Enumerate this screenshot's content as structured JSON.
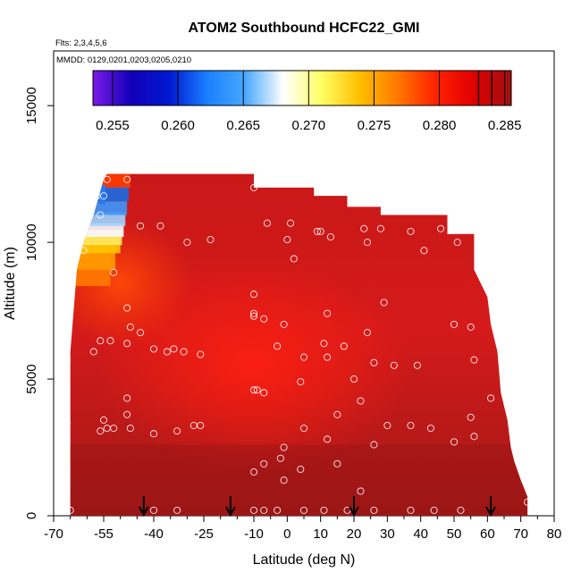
{
  "chart_data": {
    "type": "heatmap",
    "title": "ATOM2 Southbound HCFC22_GMI",
    "subtitle_flights": "Flts: 2,3,4,5,6",
    "subtitle_dates": "MMDD: 0129,0201,0203,0205,0210",
    "xlabel": "Latitude (deg N)",
    "ylabel": "Altitude (m)",
    "xlim": [
      -70,
      80
    ],
    "ylim": [
      0,
      17000
    ],
    "x_ticks": [
      -70,
      -55,
      -40,
      -25,
      -10,
      0,
      10,
      20,
      30,
      40,
      50,
      60,
      70,
      80
    ],
    "x_tick_labels": [
      "-70",
      "-55",
      "-40",
      "-25",
      "-10",
      "0",
      "10",
      "20",
      "30",
      "40",
      "50",
      "60",
      "70",
      "80"
    ],
    "x_minor_ticks": [
      -65,
      -60,
      -50,
      -45,
      -35,
      -30,
      -20,
      -15,
      -5,
      5,
      15,
      25,
      35,
      45,
      55,
      65,
      75
    ],
    "y_ticks": [
      0,
      5000,
      10000,
      15000
    ],
    "y_tick_labels": [
      "0",
      "5000",
      "10000",
      "15000"
    ],
    "colorbar": {
      "min": 0.2535,
      "max": 0.2855,
      "tick_values": [
        0.255,
        0.26,
        0.265,
        0.27,
        0.275,
        0.28,
        0.285
      ],
      "tick_labels": [
        "0.255",
        "0.260",
        "0.265",
        "0.270",
        "0.275",
        "0.280",
        "0.285"
      ],
      "colors": [
        "#7a1ae6",
        "#1200b8",
        "#0018d0",
        "#1a80ff",
        "#4aa8ff",
        "#ffffff",
        "#ffff66",
        "#ffc000",
        "#ff7a00",
        "#ff2200",
        "#e00000",
        "#a01010"
      ]
    },
    "curtain_top_altitude": [
      [
        -65,
        0
      ],
      [
        -65,
        6000
      ],
      [
        -63,
        9000
      ],
      [
        -61,
        10000
      ],
      [
        -58,
        11000
      ],
      [
        -55,
        12300
      ],
      [
        -54,
        12500
      ],
      [
        -35,
        12500
      ],
      [
        -20,
        12500
      ],
      [
        -10,
        12500
      ],
      [
        -10,
        12000
      ],
      [
        8,
        12000
      ],
      [
        8,
        11700
      ],
      [
        18,
        11700
      ],
      [
        18,
        11300
      ],
      [
        28,
        11300
      ],
      [
        28,
        11000
      ],
      [
        48,
        11000
      ],
      [
        48,
        10300
      ],
      [
        56,
        10300
      ],
      [
        56,
        9000
      ],
      [
        60,
        8000
      ],
      [
        61,
        7000
      ],
      [
        63,
        6000
      ],
      [
        64,
        4500
      ],
      [
        66,
        3500
      ],
      [
        67,
        2500
      ],
      [
        68,
        2000
      ],
      [
        70,
        1300
      ],
      [
        72,
        700
      ],
      [
        72,
        0
      ]
    ],
    "obs_values": [
      0.284,
      0.284,
      0.284,
      0.283,
      0.283
    ],
    "arrow_latitudes": [
      -43,
      -17,
      20,
      61
    ],
    "points": [
      {
        "lat": -57,
        "alt": 11700
      },
      {
        "lat": -56,
        "alt": 11000
      },
      {
        "lat": -55,
        "alt": 11700
      },
      {
        "lat": -54,
        "alt": 12300
      },
      {
        "lat": -48,
        "alt": 12300
      },
      {
        "lat": -44,
        "alt": 10600
      },
      {
        "lat": -38,
        "alt": 10600
      },
      {
        "lat": -30,
        "alt": 10000
      },
      {
        "lat": -23,
        "alt": 10100
      },
      {
        "lat": -61,
        "alt": 9700
      },
      {
        "lat": -52,
        "alt": 8900
      },
      {
        "lat": -48,
        "alt": 7600
      },
      {
        "lat": -47,
        "alt": 6900
      },
      {
        "lat": -48,
        "alt": 6300
      },
      {
        "lat": -44,
        "alt": 6700
      },
      {
        "lat": -40,
        "alt": 6100
      },
      {
        "lat": -36,
        "alt": 6000
      },
      {
        "lat": -34,
        "alt": 6100
      },
      {
        "lat": -31,
        "alt": 6000
      },
      {
        "lat": -26,
        "alt": 5900
      },
      {
        "lat": -53,
        "alt": 6400
      },
      {
        "lat": -56,
        "alt": 6400
      },
      {
        "lat": -58,
        "alt": 6000
      },
      {
        "lat": -66,
        "alt": 5700
      },
      {
        "lat": -48,
        "alt": 4300
      },
      {
        "lat": -48,
        "alt": 3700
      },
      {
        "lat": -52,
        "alt": 3200
      },
      {
        "lat": -55,
        "alt": 3500
      },
      {
        "lat": -56,
        "alt": 3100
      },
      {
        "lat": -54,
        "alt": 3200
      },
      {
        "lat": -47,
        "alt": 3200
      },
      {
        "lat": -40,
        "alt": 3000
      },
      {
        "lat": -33,
        "alt": 3100
      },
      {
        "lat": -28,
        "alt": 3300
      },
      {
        "lat": -26,
        "alt": 3300
      },
      {
        "lat": -66,
        "alt": 3400
      },
      {
        "lat": -65,
        "alt": 200
      },
      {
        "lat": -40,
        "alt": 200
      },
      {
        "lat": -33,
        "alt": 200
      },
      {
        "lat": -10,
        "alt": 12000
      },
      {
        "lat": -6,
        "alt": 10700
      },
      {
        "lat": 1,
        "alt": 10700
      },
      {
        "lat": 0,
        "alt": 10100
      },
      {
        "lat": 9,
        "alt": 10400
      },
      {
        "lat": 10,
        "alt": 10400
      },
      {
        "lat": 2,
        "alt": 9400
      },
      {
        "lat": 13,
        "alt": 10200
      },
      {
        "lat": 23,
        "alt": 10500
      },
      {
        "lat": 28,
        "alt": 10500
      },
      {
        "lat": 24,
        "alt": 10000
      },
      {
        "lat": 37,
        "alt": 10400
      },
      {
        "lat": 41,
        "alt": 9700
      },
      {
        "lat": 46,
        "alt": 10500
      },
      {
        "lat": 51,
        "alt": 10000
      },
      {
        "lat": -10,
        "alt": 8100
      },
      {
        "lat": -10,
        "alt": 7400
      },
      {
        "lat": -10,
        "alt": 7300
      },
      {
        "lat": -7,
        "alt": 7200
      },
      {
        "lat": -3,
        "alt": 6200
      },
      {
        "lat": -1,
        "alt": 7000
      },
      {
        "lat": 12,
        "alt": 7400
      },
      {
        "lat": 29,
        "alt": 7800
      },
      {
        "lat": 24,
        "alt": 6700
      },
      {
        "lat": 17,
        "alt": 6200
      },
      {
        "lat": 11,
        "alt": 6300
      },
      {
        "lat": 12,
        "alt": 5800
      },
      {
        "lat": 5,
        "alt": 5800
      },
      {
        "lat": 4,
        "alt": 4900
      },
      {
        "lat": 20,
        "alt": 5000
      },
      {
        "lat": 26,
        "alt": 5600
      },
      {
        "lat": 32,
        "alt": 5500
      },
      {
        "lat": 39,
        "alt": 5500
      },
      {
        "lat": 50,
        "alt": 7000
      },
      {
        "lat": 55,
        "alt": 6900
      },
      {
        "lat": 56,
        "alt": 5700
      },
      {
        "lat": -10,
        "alt": 4600
      },
      {
        "lat": -9,
        "alt": 4600
      },
      {
        "lat": -7,
        "alt": 4500
      },
      {
        "lat": 22,
        "alt": 4200
      },
      {
        "lat": 15,
        "alt": 3700
      },
      {
        "lat": 5,
        "alt": 3200
      },
      {
        "lat": 12,
        "alt": 2800
      },
      {
        "lat": 30,
        "alt": 3300
      },
      {
        "lat": 37,
        "alt": 3300
      },
      {
        "lat": 43,
        "alt": 3200
      },
      {
        "lat": 50,
        "alt": 2700
      },
      {
        "lat": 55,
        "alt": 3600
      },
      {
        "lat": 56,
        "alt": 2900
      },
      {
        "lat": 61,
        "alt": 4300
      },
      {
        "lat": 26,
        "alt": 2600
      },
      {
        "lat": -1,
        "alt": 2500
      },
      {
        "lat": -2,
        "alt": 2100
      },
      {
        "lat": -7,
        "alt": 1900
      },
      {
        "lat": -10,
        "alt": 1600
      },
      {
        "lat": 4,
        "alt": 1700
      },
      {
        "lat": 15,
        "alt": 1900
      },
      {
        "lat": -1,
        "alt": 1300
      },
      {
        "lat": 22,
        "alt": 900
      },
      {
        "lat": -10,
        "alt": 200
      },
      {
        "lat": -7,
        "alt": 200
      },
      {
        "lat": -3,
        "alt": 200
      },
      {
        "lat": 5,
        "alt": 200
      },
      {
        "lat": 11,
        "alt": 200
      },
      {
        "lat": 18,
        "alt": 200
      },
      {
        "lat": 26,
        "alt": 200
      },
      {
        "lat": 37,
        "alt": 200
      },
      {
        "lat": 44,
        "alt": 200
      },
      {
        "lat": 52,
        "alt": 200
      },
      {
        "lat": 72,
        "alt": 500
      }
    ]
  }
}
